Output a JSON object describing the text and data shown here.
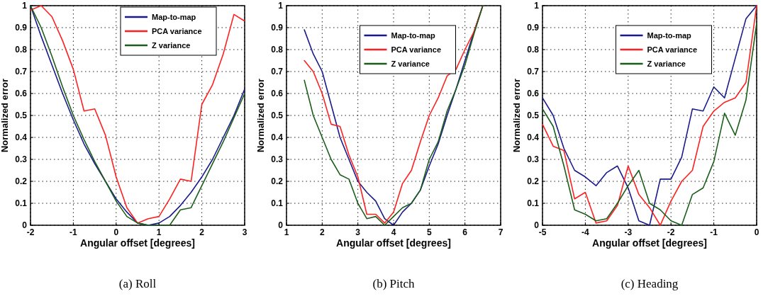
{
  "chart_data": [
    {
      "type": "line",
      "title": "(a) Roll",
      "xlabel": "Angular offset [degrees]",
      "ylabel": "Normalized error",
      "xlim": [
        -2,
        3
      ],
      "xticks": [
        -2,
        -1,
        0,
        1,
        2,
        3
      ],
      "ylim": [
        0,
        1
      ],
      "yticks": [
        0,
        0.1,
        0.2,
        0.3,
        0.4,
        0.5,
        0.6,
        0.7,
        0.8,
        0.9,
        1
      ],
      "grid": true,
      "legend": "top right",
      "line_style": "solid",
      "x": [
        -2,
        -1.75,
        -1.5,
        -1.25,
        -1,
        -0.75,
        -0.5,
        -0.25,
        0,
        0.25,
        0.5,
        0.75,
        1,
        1.25,
        1.5,
        1.75,
        2,
        2.25,
        2.5,
        2.75,
        3
      ],
      "series": [
        {
          "name": "Map-to-map",
          "color": "#1a1a8c",
          "values": [
            1,
            0.86,
            0.73,
            0.6,
            0.48,
            0.37,
            0.28,
            0.2,
            0.12,
            0.06,
            0.01,
            0,
            0.01,
            0.04,
            0.09,
            0.15,
            0.22,
            0.3,
            0.4,
            0.5,
            0.62
          ]
        },
        {
          "name": "PCA variance",
          "color": "#ff2020",
          "values": [
            0.98,
            1,
            0.95,
            0.84,
            0.71,
            0.52,
            0.53,
            0.41,
            0.22,
            0.08,
            0.01,
            0.03,
            0.04,
            0.12,
            0.21,
            0.2,
            0.55,
            0.64,
            0.78,
            0.96,
            0.93
          ]
        },
        {
          "name": "Z variance",
          "color": "#1a5e1a",
          "values": [
            1,
            0.9,
            0.77,
            0.63,
            0.5,
            0.39,
            0.29,
            0.2,
            0.11,
            0.04,
            0.01,
            0,
            0,
            0,
            0.07,
            0.08,
            0.18,
            0.28,
            0.38,
            0.49,
            0.6
          ]
        }
      ]
    },
    {
      "type": "line",
      "title": "(b) Pitch",
      "xlabel": "Angular offset [degrees]",
      "ylabel": "Normalized error",
      "xlim": [
        1,
        7
      ],
      "xticks": [
        1,
        2,
        3,
        4,
        5,
        6,
        7
      ],
      "ylim": [
        0,
        1
      ],
      "yticks": [
        0,
        0.1,
        0.2,
        0.3,
        0.4,
        0.5,
        0.6,
        0.7,
        0.8,
        0.9,
        1
      ],
      "grid": true,
      "legend": "top",
      "line_style": "solid",
      "x": [
        1.5,
        1.75,
        2,
        2.25,
        2.5,
        2.75,
        3,
        3.25,
        3.5,
        3.75,
        4,
        4.25,
        4.5,
        4.75,
        5,
        5.25,
        5.5,
        5.75,
        6,
        6.25,
        6.5
      ],
      "series": [
        {
          "name": "Map-to-map",
          "color": "#1a1a8c",
          "values": [
            0.89,
            0.78,
            0.7,
            0.55,
            0.4,
            0.3,
            0.2,
            0.15,
            0.11,
            0.03,
            0,
            0.06,
            0.1,
            0.16,
            0.27,
            0.37,
            0.5,
            0.62,
            0.75,
            0.88,
            1
          ]
        },
        {
          "name": "PCA variance",
          "color": "#ff2020",
          "values": [
            0.75,
            0.7,
            0.6,
            0.46,
            0.45,
            0.32,
            0.22,
            0.05,
            0.05,
            0.01,
            0.06,
            0.19,
            0.25,
            0.38,
            0.5,
            0.58,
            0.68,
            0.71,
            0.8,
            0.88,
            1
          ]
        },
        {
          "name": "Z variance",
          "color": "#1a5e1a",
          "values": [
            0.66,
            0.5,
            0.4,
            0.3,
            0.23,
            0.21,
            0.1,
            0.03,
            0.04,
            0,
            0.04,
            0.08,
            0.1,
            0.16,
            0.3,
            0.38,
            0.52,
            0.62,
            0.73,
            0.87,
            1
          ]
        }
      ]
    },
    {
      "type": "line",
      "title": "(c) Heading",
      "xlabel": "Angular offset [degrees]",
      "ylabel": "Normalized error",
      "xlim": [
        -5,
        0
      ],
      "xticks": [
        -5,
        -4,
        -3,
        -2,
        -1,
        0
      ],
      "ylim": [
        0,
        1
      ],
      "yticks": [
        0,
        0.1,
        0.2,
        0.3,
        0.4,
        0.5,
        0.6,
        0.7,
        0.8,
        0.9,
        1
      ],
      "grid": true,
      "legend": "top",
      "line_style": "solid",
      "x": [
        -5,
        -4.75,
        -4.5,
        -4.25,
        -4,
        -3.75,
        -3.5,
        -3.25,
        -3,
        -2.75,
        -2.5,
        -2.25,
        -2,
        -1.75,
        -1.5,
        -1.25,
        -1,
        -0.75,
        -0.5,
        -0.25,
        0
      ],
      "series": [
        {
          "name": "Map-to-map",
          "color": "#1a1a8c",
          "values": [
            0.58,
            0.5,
            0.35,
            0.25,
            0.22,
            0.18,
            0.24,
            0.27,
            0.17,
            0.02,
            0,
            0.21,
            0.21,
            0.31,
            0.53,
            0.52,
            0.63,
            0.58,
            0.76,
            0.94,
            1
          ]
        },
        {
          "name": "PCA variance",
          "color": "#ff2020",
          "values": [
            0.46,
            0.36,
            0.34,
            0.12,
            0.15,
            0.01,
            0.02,
            0.09,
            0.27,
            0.14,
            0.08,
            0,
            0.11,
            0.2,
            0.25,
            0.45,
            0.52,
            0.56,
            0.58,
            0.65,
            1
          ]
        },
        {
          "name": "Z variance",
          "color": "#1a5e1a",
          "values": [
            0.53,
            0.45,
            0.27,
            0.07,
            0.05,
            0.02,
            0.03,
            0.1,
            0.18,
            0.25,
            0.1,
            0.07,
            0.02,
            0,
            0.14,
            0.17,
            0.29,
            0.51,
            0.41,
            0.57,
            0.92
          ]
        }
      ]
    }
  ]
}
